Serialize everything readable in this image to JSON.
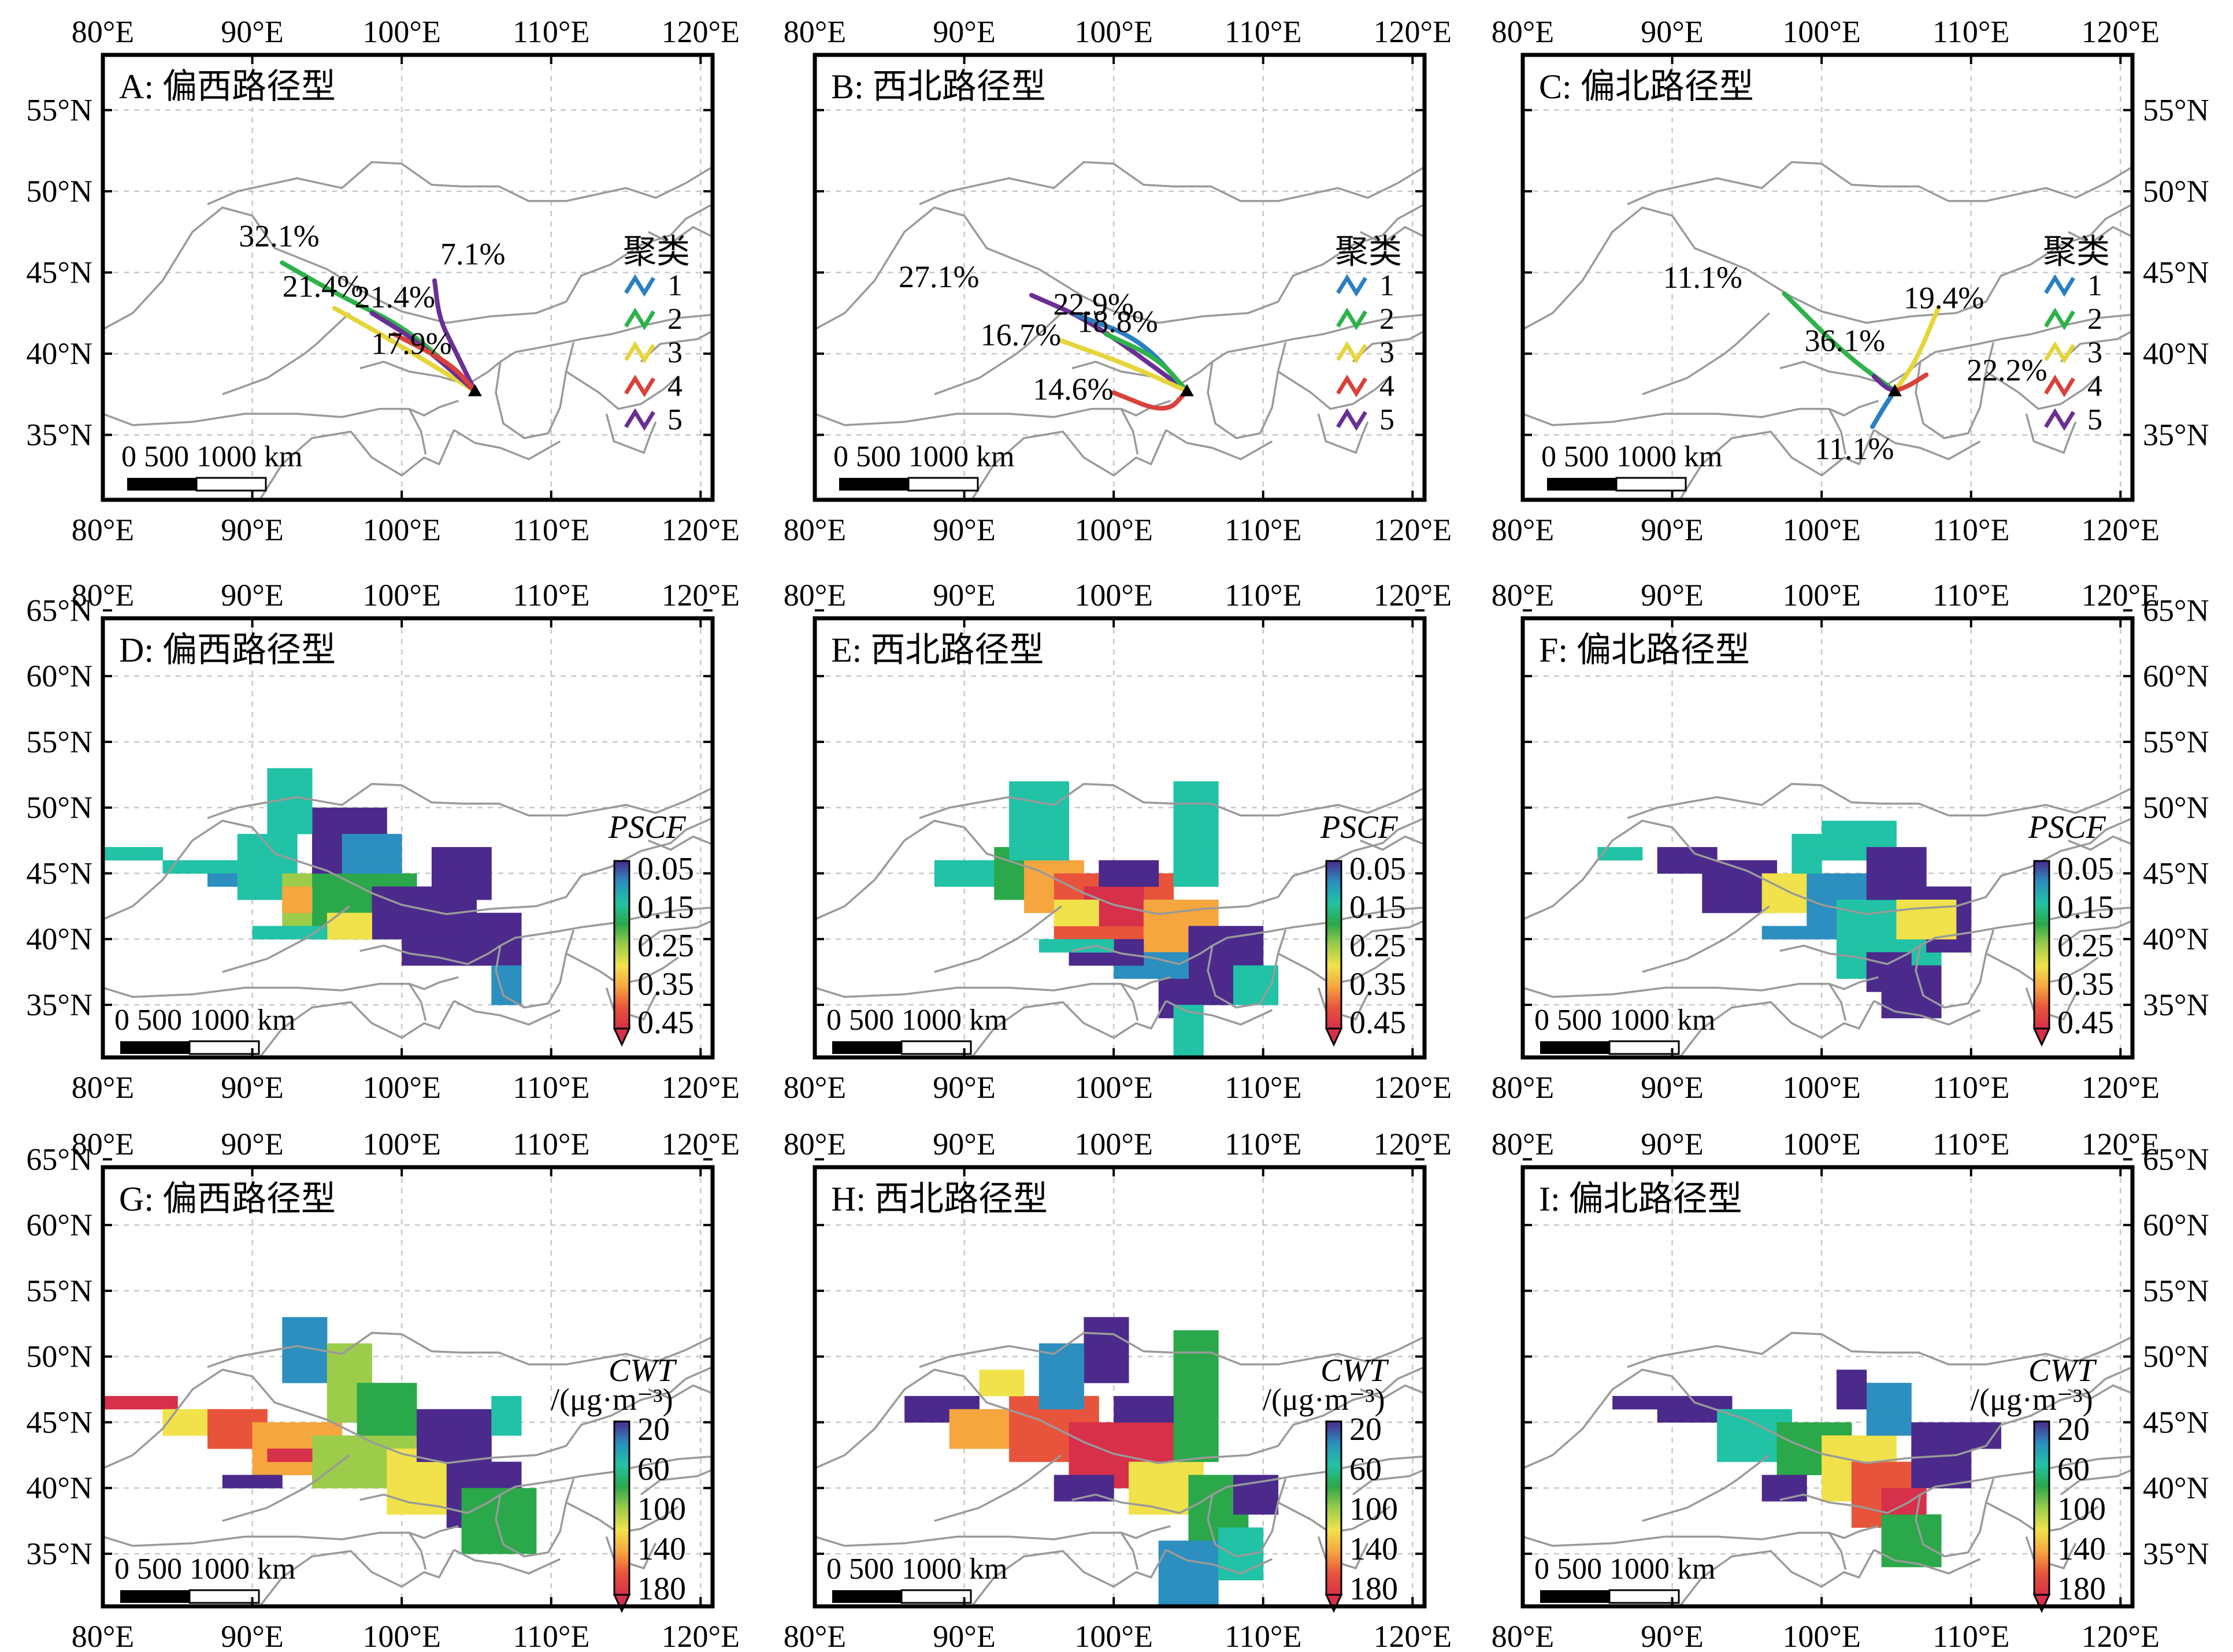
{
  "colors": {
    "cluster": [
      "#2a7fc1",
      "#2db24a",
      "#e6d53a",
      "#d9413b",
      "#6a2f94"
    ],
    "grid_ramp": [
      "#4b2a8c",
      "#2c8fbf",
      "#21c2a5",
      "#2ba84a",
      "#9ccc4a",
      "#f1e24b",
      "#f6a63f",
      "#e8543b",
      "#d6304a"
    ]
  },
  "lon_labels": [
    "80°E",
    "90°E",
    "100°E",
    "110°E",
    "120°E"
  ],
  "lat_labels_top": [
    "55°N",
    "50°N",
    "45°N",
    "40°N",
    "35°N"
  ],
  "lat_labels_grid": [
    "65°N",
    "60°N",
    "55°N",
    "50°N",
    "45°N",
    "40°N",
    "35°N"
  ],
  "scalebar": {
    "label": "0  500 1000 km"
  },
  "legend": {
    "title": "聚类",
    "items": [
      "1",
      "2",
      "3",
      "4",
      "5"
    ]
  },
  "pscf": {
    "title": "PSCF",
    "ticks": [
      "0.05",
      "0.15",
      "0.25",
      "0.35",
      "0.45"
    ]
  },
  "cwt": {
    "title": "CWT",
    "unit": "/(μg·m⁻³)",
    "ticks": [
      "20",
      "60",
      "100",
      "140",
      "180"
    ]
  },
  "panels": {
    "A": {
      "title": "A: 偏西路径型"
    },
    "B": {
      "title": "B: 西北路径型"
    },
    "C": {
      "title": "C: 偏北路径型"
    },
    "D": {
      "title": "D: 偏西路径型"
    },
    "E": {
      "title": "E: 西北路径型"
    },
    "F": {
      "title": "F: 偏北路径型"
    },
    "G": {
      "title": "G: 偏西路径型"
    },
    "H": {
      "title": "H: 西北路径型"
    },
    "I": {
      "title": "I: 偏北路径型"
    }
  },
  "trajectories": {
    "origin": [
      104.9,
      37.7
    ],
    "A": [
      {
        "cluster": 5,
        "pct": "7.1%",
        "path": [
          [
            102.2,
            44.5
          ],
          [
            102.5,
            42.2
          ],
          [
            103.4,
            40.5
          ],
          [
            104.9,
            37.7
          ]
        ]
      },
      {
        "cluster": 2,
        "pct": "32.1%",
        "path": [
          [
            92.0,
            45.6
          ],
          [
            96.0,
            43.5
          ],
          [
            100.5,
            41.5
          ],
          [
            104.9,
            37.7
          ]
        ]
      },
      {
        "cluster": 3,
        "pct": "21.4%",
        "path": [
          [
            95.5,
            42.8
          ],
          [
            99.0,
            41.0
          ],
          [
            104.9,
            37.7
          ]
        ]
      },
      {
        "cluster": 5,
        "pct": "21.4%",
        "path": [
          [
            98.0,
            42.5
          ],
          [
            101.0,
            40.8
          ],
          [
            104.9,
            37.7
          ]
        ]
      },
      {
        "cluster": 4,
        "pct": "17.9%",
        "path": [
          [
            99.5,
            41.2
          ],
          [
            103.3,
            39.4
          ],
          [
            104.9,
            37.7
          ]
        ]
      }
    ],
    "B": [
      {
        "cluster": 5,
        "pct": "27.1%",
        "path": [
          [
            94.5,
            43.6
          ],
          [
            98.5,
            42.0
          ],
          [
            104.9,
            37.7
          ]
        ]
      },
      {
        "cluster": 1,
        "pct": "22.9%",
        "path": [
          [
            97.5,
            42.4
          ],
          [
            101.8,
            40.9
          ],
          [
            104.9,
            37.7
          ]
        ]
      },
      {
        "cluster": 2,
        "pct": "18.8%",
        "path": [
          [
            99.5,
            41.2
          ],
          [
            103.0,
            39.7
          ],
          [
            104.9,
            37.7
          ]
        ]
      },
      {
        "cluster": 3,
        "pct": "16.7%",
        "path": [
          [
            96.5,
            40.8
          ],
          [
            101.0,
            39.3
          ],
          [
            104.9,
            37.7
          ]
        ]
      },
      {
        "cluster": 4,
        "pct": "14.6%",
        "path": [
          [
            100.0,
            37.6
          ],
          [
            103.5,
            36.3
          ],
          [
            104.9,
            37.7
          ]
        ]
      }
    ],
    "C": [
      {
        "cluster": 2,
        "pct": "11.1%",
        "path": [
          [
            97.5,
            43.7
          ],
          [
            101.5,
            40.0
          ],
          [
            104.9,
            37.7
          ]
        ]
      },
      {
        "cluster": 3,
        "pct": "19.4%",
        "path": [
          [
            107.8,
            42.8
          ],
          [
            106.3,
            39.5
          ],
          [
            104.9,
            37.7
          ]
        ]
      },
      {
        "cluster": 5,
        "pct": "36.1%",
        "path": [
          [
            103.5,
            38.6
          ],
          [
            104.3,
            37.9
          ],
          [
            104.9,
            37.7
          ]
        ]
      },
      {
        "cluster": 4,
        "pct": "22.2%",
        "path": [
          [
            107.0,
            38.7
          ],
          [
            105.8,
            38.0
          ],
          [
            104.9,
            37.7
          ]
        ]
      },
      {
        "cluster": 1,
        "pct": "11.1%",
        "path": [
          [
            103.4,
            35.5
          ],
          [
            104.3,
            36.9
          ],
          [
            104.9,
            37.7
          ]
        ]
      }
    ]
  }
}
